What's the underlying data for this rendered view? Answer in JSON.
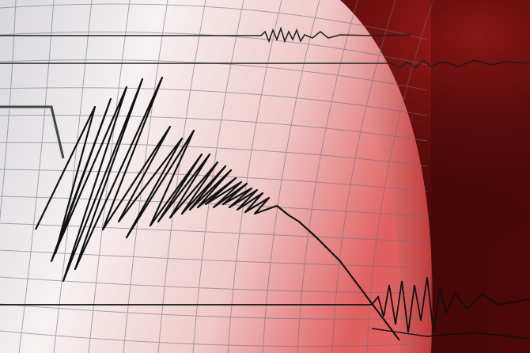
{
  "image": {
    "subject": "seismograph",
    "colors": {
      "paper_light": "#f4f0f0",
      "paper_shadow": "#c9b9bb",
      "glow_red": "#e04848",
      "dark_red": "#3a0606",
      "trace": "#111111",
      "grid": "#6b6b78"
    }
  }
}
